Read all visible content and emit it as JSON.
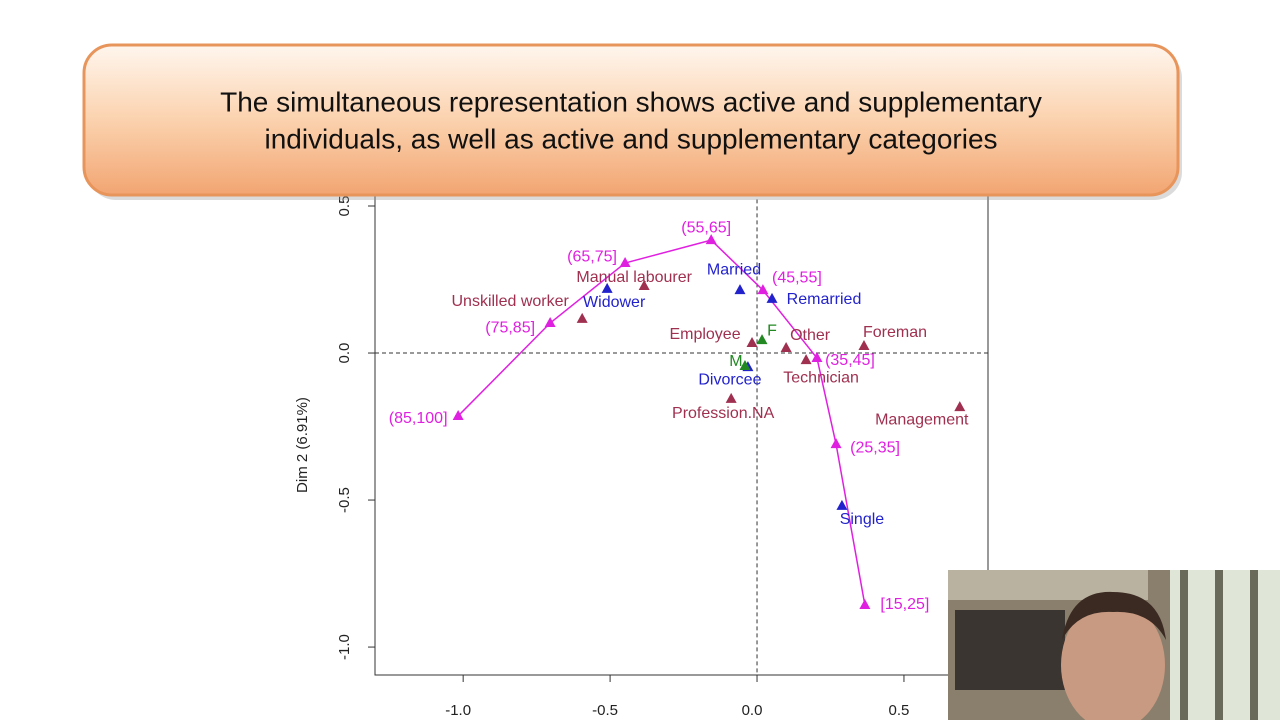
{
  "callout": {
    "lines": [
      "The simultaneous representation shows active and supplementary",
      "individuals, as well as active and supplementary categories"
    ]
  },
  "chart_data": {
    "type": "scatter",
    "ylabel": "Dim 2 (6.91%)",
    "xlim": [
      -1.3,
      0.786
    ],
    "ylim": [
      -1.095,
      0.57
    ],
    "xticks": [
      {
        "value": -1.0,
        "label": "-1.0"
      },
      -0.5,
      {
        "value": 0.0,
        "label": "0.0"
      },
      0.5
    ],
    "yticks": [
      {
        "value": -1.0,
        "label": "-1.0"
      },
      -0.5,
      {
        "value": 0.0,
        "label": "0.0"
      },
      0.5
    ],
    "origin_lines": true,
    "series": [
      {
        "color": "#e020e0",
        "line": true,
        "labels": [
          "(85,100]",
          "(75,85]",
          "(65,75]",
          "(55,65]",
          "(45,55]",
          "(35,45]",
          "(25,35]",
          "[15,25]"
        ],
        "x": [
          -1.017,
          -0.704,
          -0.449,
          -0.156,
          0.02,
          0.204,
          0.269,
          0.367
        ],
        "values": [
          -0.214,
          0.102,
          0.306,
          0.384,
          0.214,
          -0.017,
          -0.31,
          -0.857
        ]
      },
      {
        "color": "#2222cc",
        "line": false,
        "labels": [
          "Widower",
          "Married",
          "Remarried",
          "Divorcee",
          "Single"
        ],
        "x": [
          -0.51,
          -0.058,
          0.051,
          -0.031,
          0.289
        ],
        "values": [
          0.218,
          0.214,
          0.184,
          -0.048,
          -0.52
        ]
      },
      {
        "color": "#228822",
        "line": false,
        "labels": [
          "F",
          "M"
        ],
        "x": [
          0.017,
          -0.041
        ],
        "values": [
          0.044,
          -0.044
        ]
      },
      {
        "color": "#a03050",
        "line": false,
        "labels": [
          "Manual labourer",
          "Unskilled worker",
          "Employee",
          "Other",
          "Foreman",
          "Technician",
          "Profession.NA",
          "Management"
        ],
        "x": [
          -0.384,
          -0.595,
          -0.017,
          0.099,
          0.364,
          0.167,
          -0.088,
          0.69
        ],
        "values": [
          0.228,
          0.116,
          0.034,
          0.017,
          0.024,
          -0.024,
          -0.156,
          -0.184
        ]
      }
    ]
  }
}
